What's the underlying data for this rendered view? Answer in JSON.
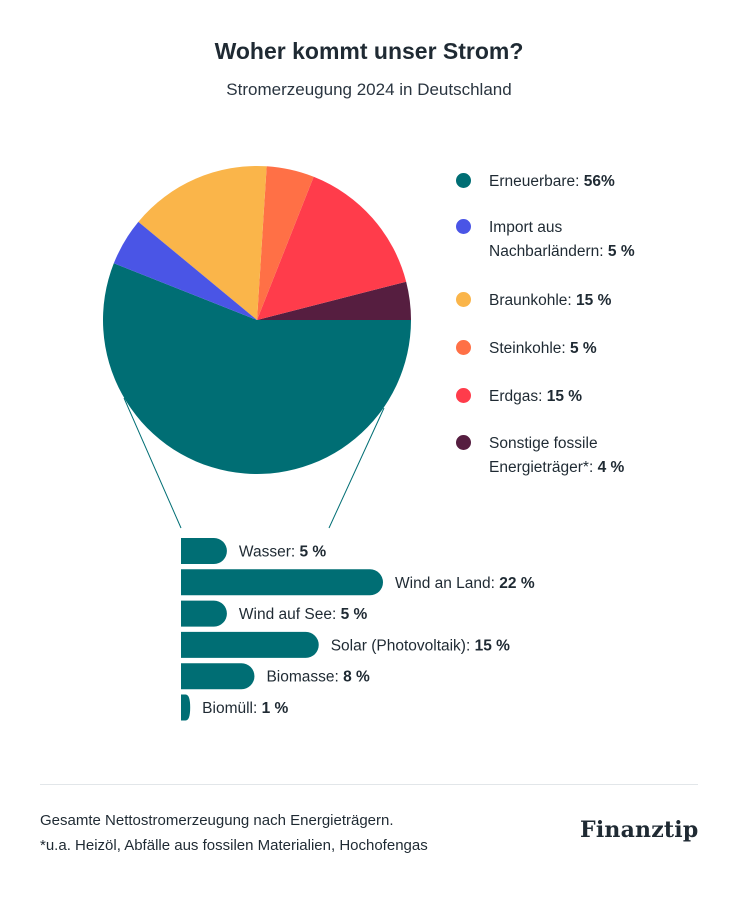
{
  "title": "Woher kommt unser Strom?",
  "subtitle": "Stromerzeugung 2024 in Deutschland",
  "chart_data": [
    {
      "type": "pie",
      "slices": [
        {
          "label": "Erneuerbare:",
          "legend_label": "Erneuerbare:",
          "value": 56,
          "value_label": "56%",
          "color": "#006e74"
        },
        {
          "label": "Import aus Nachbarländern:",
          "legend_label": "Import aus Nachbarländern:",
          "value": 5,
          "value_label": "5 %",
          "color": "#4a55e6"
        },
        {
          "label": "Braunkohle:",
          "legend_label": "Braunkohle:",
          "value": 15,
          "value_label": "15 %",
          "color": "#fab54a"
        },
        {
          "label": "Steinkohle:",
          "legend_label": "Steinkohle:",
          "value": 5,
          "value_label": "5 %",
          "color": "#ff7046"
        },
        {
          "label": "Erdgas:",
          "legend_label": "Erdgas:",
          "value": 15,
          "value_label": "15 %",
          "color": "#ff3c4b"
        },
        {
          "label": "Sonstige fossile Energieträger*:",
          "legend_label": "Sonstige fossile Energieträger*:",
          "value": 4,
          "value_label": "4 %",
          "color": "#561e40"
        }
      ]
    },
    {
      "type": "bar",
      "orientation": "horizontal",
      "categories": [
        "Wasser:",
        "Wind an Land:",
        "Wind auf See:",
        "Solar (Photovoltaik):",
        "Biomasse:",
        "Biomüll:"
      ],
      "values": [
        5,
        22,
        5,
        15,
        8,
        1
      ],
      "value_labels": [
        "5 %",
        "22 %",
        "5 %",
        "15 %",
        "8 %",
        "1 %"
      ],
      "color": "#006e74"
    }
  ],
  "footer": {
    "note1": "Gesamte Nettostromerzeugung nach Energieträgern.",
    "note2": "*u.a. Heizöl, Abfälle aus fossilen Materialien, Hochofengas",
    "brand": "Finanztip"
  }
}
